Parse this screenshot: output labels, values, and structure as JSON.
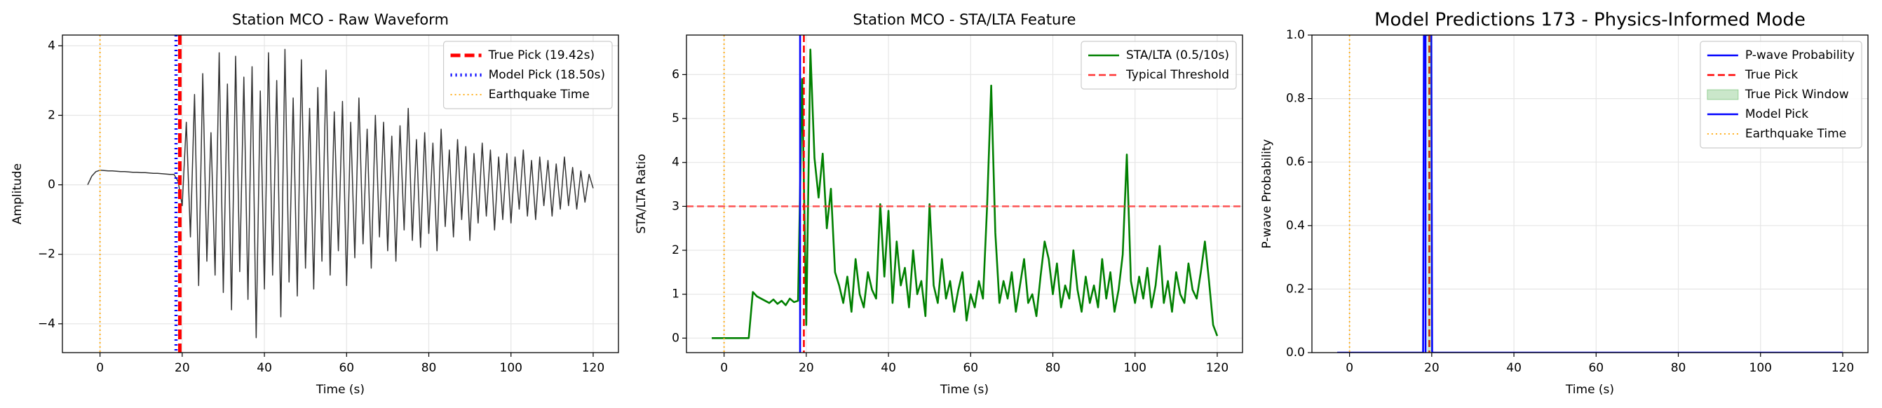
{
  "chart_data": [
    {
      "type": "line",
      "title": "Station MCO - Raw Waveform",
      "xlabel": "Time (s)",
      "ylabel": "Amplitude",
      "xlim": [
        -9.15,
        126.15
      ],
      "ylim": [
        -4.83,
        4.31
      ],
      "xticks": [
        0,
        20,
        40,
        60,
        80,
        100,
        120
      ],
      "yticks": [
        {
          "value": -4,
          "label": "−4"
        },
        {
          "value": -2,
          "label": "−2"
        },
        0,
        2,
        4
      ],
      "grid": true,
      "legend": "upper right",
      "series": [
        {
          "kind": "line",
          "color": "#333333",
          "style": "solid-thin",
          "x": [
            -3,
            -2,
            -1,
            0,
            1,
            2,
            3,
            4,
            5,
            6,
            7,
            8,
            9,
            10,
            11,
            12,
            13,
            14,
            15,
            16,
            17,
            18,
            19,
            20,
            21,
            22,
            23,
            24,
            25,
            26,
            27,
            28,
            29,
            30,
            31,
            32,
            33,
            34,
            35,
            36,
            37,
            38,
            39,
            40,
            41,
            42,
            43,
            44,
            45,
            46,
            47,
            48,
            49,
            50,
            51,
            52,
            53,
            54,
            55,
            56,
            57,
            58,
            59,
            60,
            61,
            62,
            63,
            64,
            65,
            66,
            67,
            68,
            69,
            70,
            71,
            72,
            73,
            74,
            75,
            76,
            77,
            78,
            79,
            80,
            81,
            82,
            83,
            84,
            85,
            86,
            87,
            88,
            89,
            90,
            91,
            92,
            93,
            94,
            95,
            96,
            97,
            98,
            99,
            100,
            101,
            102,
            103,
            104,
            105,
            106,
            107,
            108,
            109,
            110,
            111,
            112,
            113,
            114,
            115,
            116,
            117,
            118,
            119,
            120
          ],
          "values": [
            0,
            0.25,
            0.38,
            0.42,
            0.41,
            0.4,
            0.4,
            0.39,
            0.38,
            0.38,
            0.37,
            0.36,
            0.36,
            0.35,
            0.35,
            0.34,
            0.33,
            0.33,
            0.32,
            0.31,
            0.3,
            0.3,
            0.1,
            -0.6,
            1.8,
            -1.5,
            2.6,
            -2.9,
            3.2,
            -2.2,
            1.5,
            -2.6,
            3.8,
            -3.1,
            2.9,
            -3.6,
            3.7,
            -2.5,
            3.1,
            -3.3,
            3.4,
            -4.4,
            2.7,
            -3.0,
            3.8,
            -2.6,
            3.0,
            -3.8,
            3.9,
            -2.8,
            2.5,
            -3.2,
            3.6,
            -2.4,
            2.2,
            -3.0,
            2.8,
            -2.2,
            3.3,
            -2.6,
            2.1,
            -1.9,
            2.4,
            -2.9,
            1.8,
            -2.1,
            2.5,
            -1.7,
            1.6,
            -2.4,
            2.0,
            -1.5,
            1.8,
            -1.9,
            1.4,
            -2.2,
            1.7,
            -1.3,
            2.2,
            -1.6,
            1.3,
            -1.8,
            1.5,
            -1.4,
            1.2,
            -1.9,
            1.6,
            -1.2,
            1.0,
            -1.5,
            1.3,
            -1.0,
            1.1,
            -1.6,
            0.9,
            -1.1,
            1.2,
            -0.9,
            1.0,
            -1.3,
            0.8,
            -1.0,
            0.9,
            -1.1,
            0.8,
            -0.7,
            1.0,
            -0.9,
            0.7,
            -1.0,
            0.8,
            -0.6,
            0.7,
            -0.9,
            0.6,
            -0.7,
            0.8,
            -0.6,
            0.5,
            -0.7,
            0.4,
            -0.5,
            0.3,
            -0.1
          ]
        },
        {
          "kind": "vline",
          "name": "True Pick (19.42s)",
          "color": "#ff0000",
          "style": "thick-dashed",
          "x": 19.42
        },
        {
          "kind": "vline",
          "name": "Model Pick (18.50s)",
          "color": "#0000ff",
          "style": "thick-dotted",
          "x": 18.5
        },
        {
          "kind": "vline",
          "name": "Earthquake Time",
          "color": "#ffa500",
          "style": "dotted",
          "x": 0
        }
      ]
    },
    {
      "type": "line",
      "title": "Station MCO - STA/LTA Feature",
      "xlabel": "Time (s)",
      "ylabel": "STA/LTA Ratio",
      "xlim": [
        -9.15,
        126.15
      ],
      "ylim": [
        -0.33,
        6.9
      ],
      "xticks": [
        0,
        20,
        40,
        60,
        80,
        100,
        120
      ],
      "yticks": [
        0,
        1,
        2,
        3,
        4,
        5,
        6
      ],
      "grid": true,
      "legend": "upper right",
      "series": [
        {
          "kind": "line",
          "name": "STA/LTA (0.5/10s)",
          "color": "#008000",
          "style": "solid",
          "x": [
            -3,
            -2,
            -1,
            0,
            1,
            2,
            3,
            4,
            5,
            6,
            7,
            8,
            9,
            10,
            11,
            12,
            13,
            14,
            15,
            16,
            17,
            18,
            19,
            20,
            21,
            22,
            23,
            24,
            25,
            26,
            27,
            28,
            29,
            30,
            31,
            32,
            33,
            34,
            35,
            36,
            37,
            38,
            39,
            40,
            41,
            42,
            43,
            44,
            45,
            46,
            47,
            48,
            49,
            50,
            51,
            52,
            53,
            54,
            55,
            56,
            57,
            58,
            59,
            60,
            61,
            62,
            63,
            64,
            65,
            66,
            67,
            68,
            69,
            70,
            71,
            72,
            73,
            74,
            75,
            76,
            77,
            78,
            79,
            80,
            81,
            82,
            83,
            84,
            85,
            86,
            87,
            88,
            89,
            90,
            91,
            92,
            93,
            94,
            95,
            96,
            97,
            98,
            99,
            100,
            101,
            102,
            103,
            104,
            105,
            106,
            107,
            108,
            109,
            110,
            111,
            112,
            113,
            114,
            115,
            116,
            117,
            118,
            119,
            120
          ],
          "values": [
            0,
            0,
            0,
            0,
            0,
            0,
            0,
            0,
            0,
            0,
            1.05,
            0.95,
            0.9,
            0.85,
            0.8,
            0.88,
            0.78,
            0.85,
            0.75,
            0.9,
            0.82,
            0.85,
            5.9,
            0.3,
            6.57,
            4.1,
            3.2,
            4.2,
            2.5,
            3.4,
            1.5,
            1.2,
            0.8,
            1.4,
            0.6,
            1.8,
            1.0,
            0.7,
            1.5,
            1.1,
            0.9,
            3.05,
            1.4,
            2.9,
            0.8,
            2.2,
            1.2,
            1.6,
            0.7,
            2.0,
            1.0,
            1.3,
            0.5,
            3.05,
            1.2,
            0.8,
            1.8,
            0.9,
            1.3,
            0.6,
            1.1,
            1.5,
            0.4,
            1.0,
            0.7,
            1.3,
            0.9,
            3.0,
            5.75,
            2.4,
            0.8,
            1.3,
            0.9,
            1.5,
            0.6,
            1.2,
            1.8,
            0.8,
            1.0,
            0.5,
            1.4,
            2.2,
            1.8,
            1.0,
            1.7,
            0.7,
            1.2,
            0.9,
            2.0,
            1.1,
            0.6,
            1.4,
            0.8,
            1.2,
            0.7,
            1.8,
            0.9,
            1.5,
            0.6,
            1.1,
            1.9,
            4.18,
            1.3,
            0.8,
            1.4,
            0.9,
            1.6,
            0.7,
            1.2,
            2.1,
            0.8,
            1.3,
            0.6,
            1.5,
            1.0,
            0.8,
            1.7,
            1.1,
            0.9,
            1.5,
            2.2,
            1.3,
            0.3,
            0.05
          ]
        },
        {
          "kind": "hline",
          "name": "Typical Threshold",
          "color": "#ff3333",
          "style": "dashed",
          "y": 3
        },
        {
          "kind": "vline",
          "color": "#0000ff",
          "style": "solid",
          "x": 18.5
        },
        {
          "kind": "vline",
          "color": "#ff0000",
          "style": "dashed",
          "x": 19.42
        },
        {
          "kind": "vline",
          "color": "#ffa500",
          "style": "dotted",
          "x": 0
        }
      ]
    },
    {
      "type": "line",
      "title": "Model Predictions 173 - Physics-Informed Mode",
      "xlabel": "Time (s)",
      "ylabel": "P-wave Probability",
      "xlim": [
        -9.15,
        126.15
      ],
      "ylim": [
        0,
        1
      ],
      "xticks": [
        0,
        20,
        40,
        60,
        80,
        100,
        120
      ],
      "yticks": [
        {
          "value": 0,
          "label": "0.0"
        },
        {
          "value": 0.2,
          "label": "0.2"
        },
        {
          "value": 0.4,
          "label": "0.4"
        },
        {
          "value": 0.6,
          "label": "0.6"
        },
        {
          "value": 0.8,
          "label": "0.8"
        },
        {
          "value": 1,
          "label": "1.0"
        }
      ],
      "grid": true,
      "legend": "upper right",
      "series": [
        {
          "kind": "line",
          "name": "P-wave Probability",
          "color": "#0000ff",
          "style": "solid",
          "x": [
            -3,
            17.9,
            18.1,
            19.9,
            20.1,
            120
          ],
          "values": [
            0,
            0,
            1,
            1,
            0,
            0
          ]
        },
        {
          "kind": "vline",
          "name": "True Pick",
          "color": "#ff0000",
          "style": "dashed",
          "x": 19.42
        },
        {
          "kind": "span",
          "name": "True Pick Window",
          "color": "#2ca02c",
          "x": [
            18.92,
            19.92
          ]
        },
        {
          "kind": "vline",
          "name": "Model Pick",
          "color": "#0000ff",
          "style": "solid",
          "x": 18.5
        },
        {
          "kind": "vline",
          "name": "Earthquake Time",
          "color": "#ffa500",
          "style": "dotted",
          "x": 0
        }
      ]
    }
  ]
}
